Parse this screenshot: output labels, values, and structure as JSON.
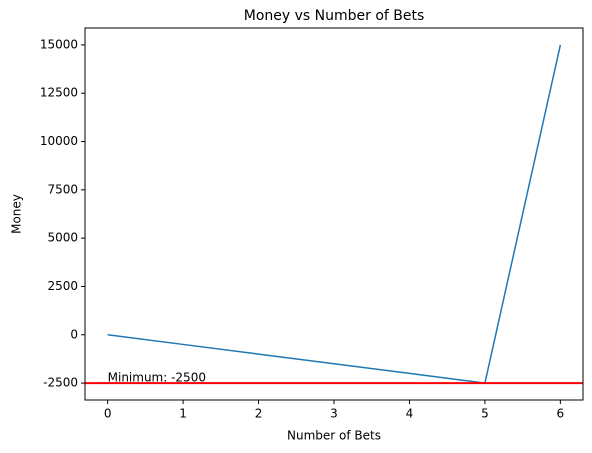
{
  "chart_data": {
    "type": "line",
    "title": "Money vs Number of Bets",
    "xlabel": "Number of Bets",
    "ylabel": "Money",
    "x": [
      0,
      1,
      2,
      3,
      4,
      5,
      6
    ],
    "series": [
      {
        "name": "Money",
        "color": "#1f77b4",
        "values": [
          0,
          -500,
          -1000,
          -1500,
          -2000,
          -2500,
          15000
        ]
      }
    ],
    "xlim": [
      -0.3,
      6.3
    ],
    "xticks": [
      0,
      1,
      2,
      3,
      4,
      5,
      6
    ],
    "ylim": [
      -3375,
      15875
    ],
    "yticks": [
      -2500,
      0,
      2500,
      5000,
      7500,
      10000,
      12500,
      15000
    ],
    "hline": {
      "value": -2500,
      "color": "#ff0000",
      "label": "Minimum: -2500",
      "x": 0
    }
  }
}
